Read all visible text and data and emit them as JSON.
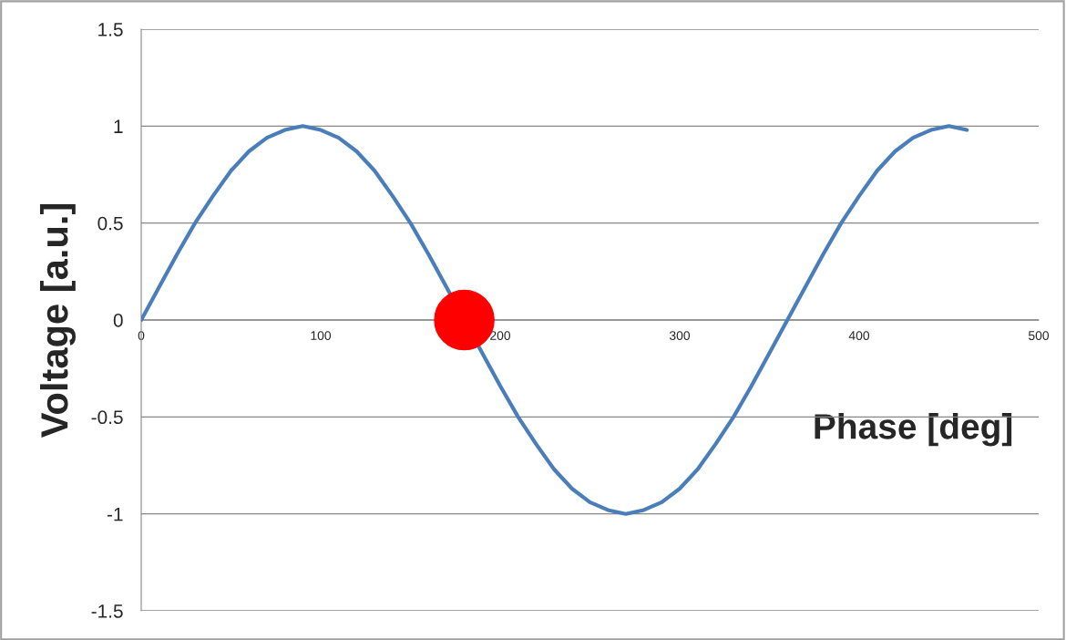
{
  "chart_data": {
    "type": "line",
    "xlabel": "Phase [deg]",
    "ylabel": "Voltage [a.u.]",
    "xlim": [
      0,
      500
    ],
    "xticks": [
      0,
      100,
      200,
      300,
      400,
      500
    ],
    "ylim": [
      -1.5,
      1.5
    ],
    "yticks": [
      -1.5,
      -1,
      -0.5,
      0,
      0.5,
      1,
      1.5
    ],
    "grid": "y",
    "series": [
      {
        "color": "#4a7ebb",
        "marker": "none",
        "x": [
          0,
          10,
          20,
          30,
          40,
          50,
          60,
          70,
          80,
          90,
          100,
          110,
          120,
          130,
          140,
          150,
          160,
          170,
          180,
          190,
          200,
          210,
          220,
          230,
          240,
          250,
          260,
          270,
          280,
          290,
          300,
          310,
          320,
          330,
          340,
          350,
          360,
          370,
          380,
          390,
          400,
          410,
          420,
          430,
          440,
          450,
          460
        ],
        "values": [
          0,
          0.17,
          0.34,
          0.5,
          0.64,
          0.77,
          0.87,
          0.94,
          0.98,
          1,
          0.98,
          0.94,
          0.87,
          0.77,
          0.64,
          0.5,
          0.34,
          0.17,
          null,
          -0.17,
          -0.34,
          -0.5,
          -0.64,
          -0.77,
          -0.87,
          -0.94,
          -0.98,
          -1,
          -0.98,
          -0.94,
          -0.87,
          -0.77,
          -0.64,
          -0.5,
          -0.34,
          -0.17,
          0,
          0.17,
          0.34,
          0.5,
          0.64,
          0.77,
          0.87,
          0.94,
          0.98,
          1,
          0.98
        ]
      },
      {
        "type": "scatter",
        "color": "#ff0000",
        "marker": "circle",
        "x": [
          180
        ],
        "values": [
          0
        ]
      }
    ]
  }
}
